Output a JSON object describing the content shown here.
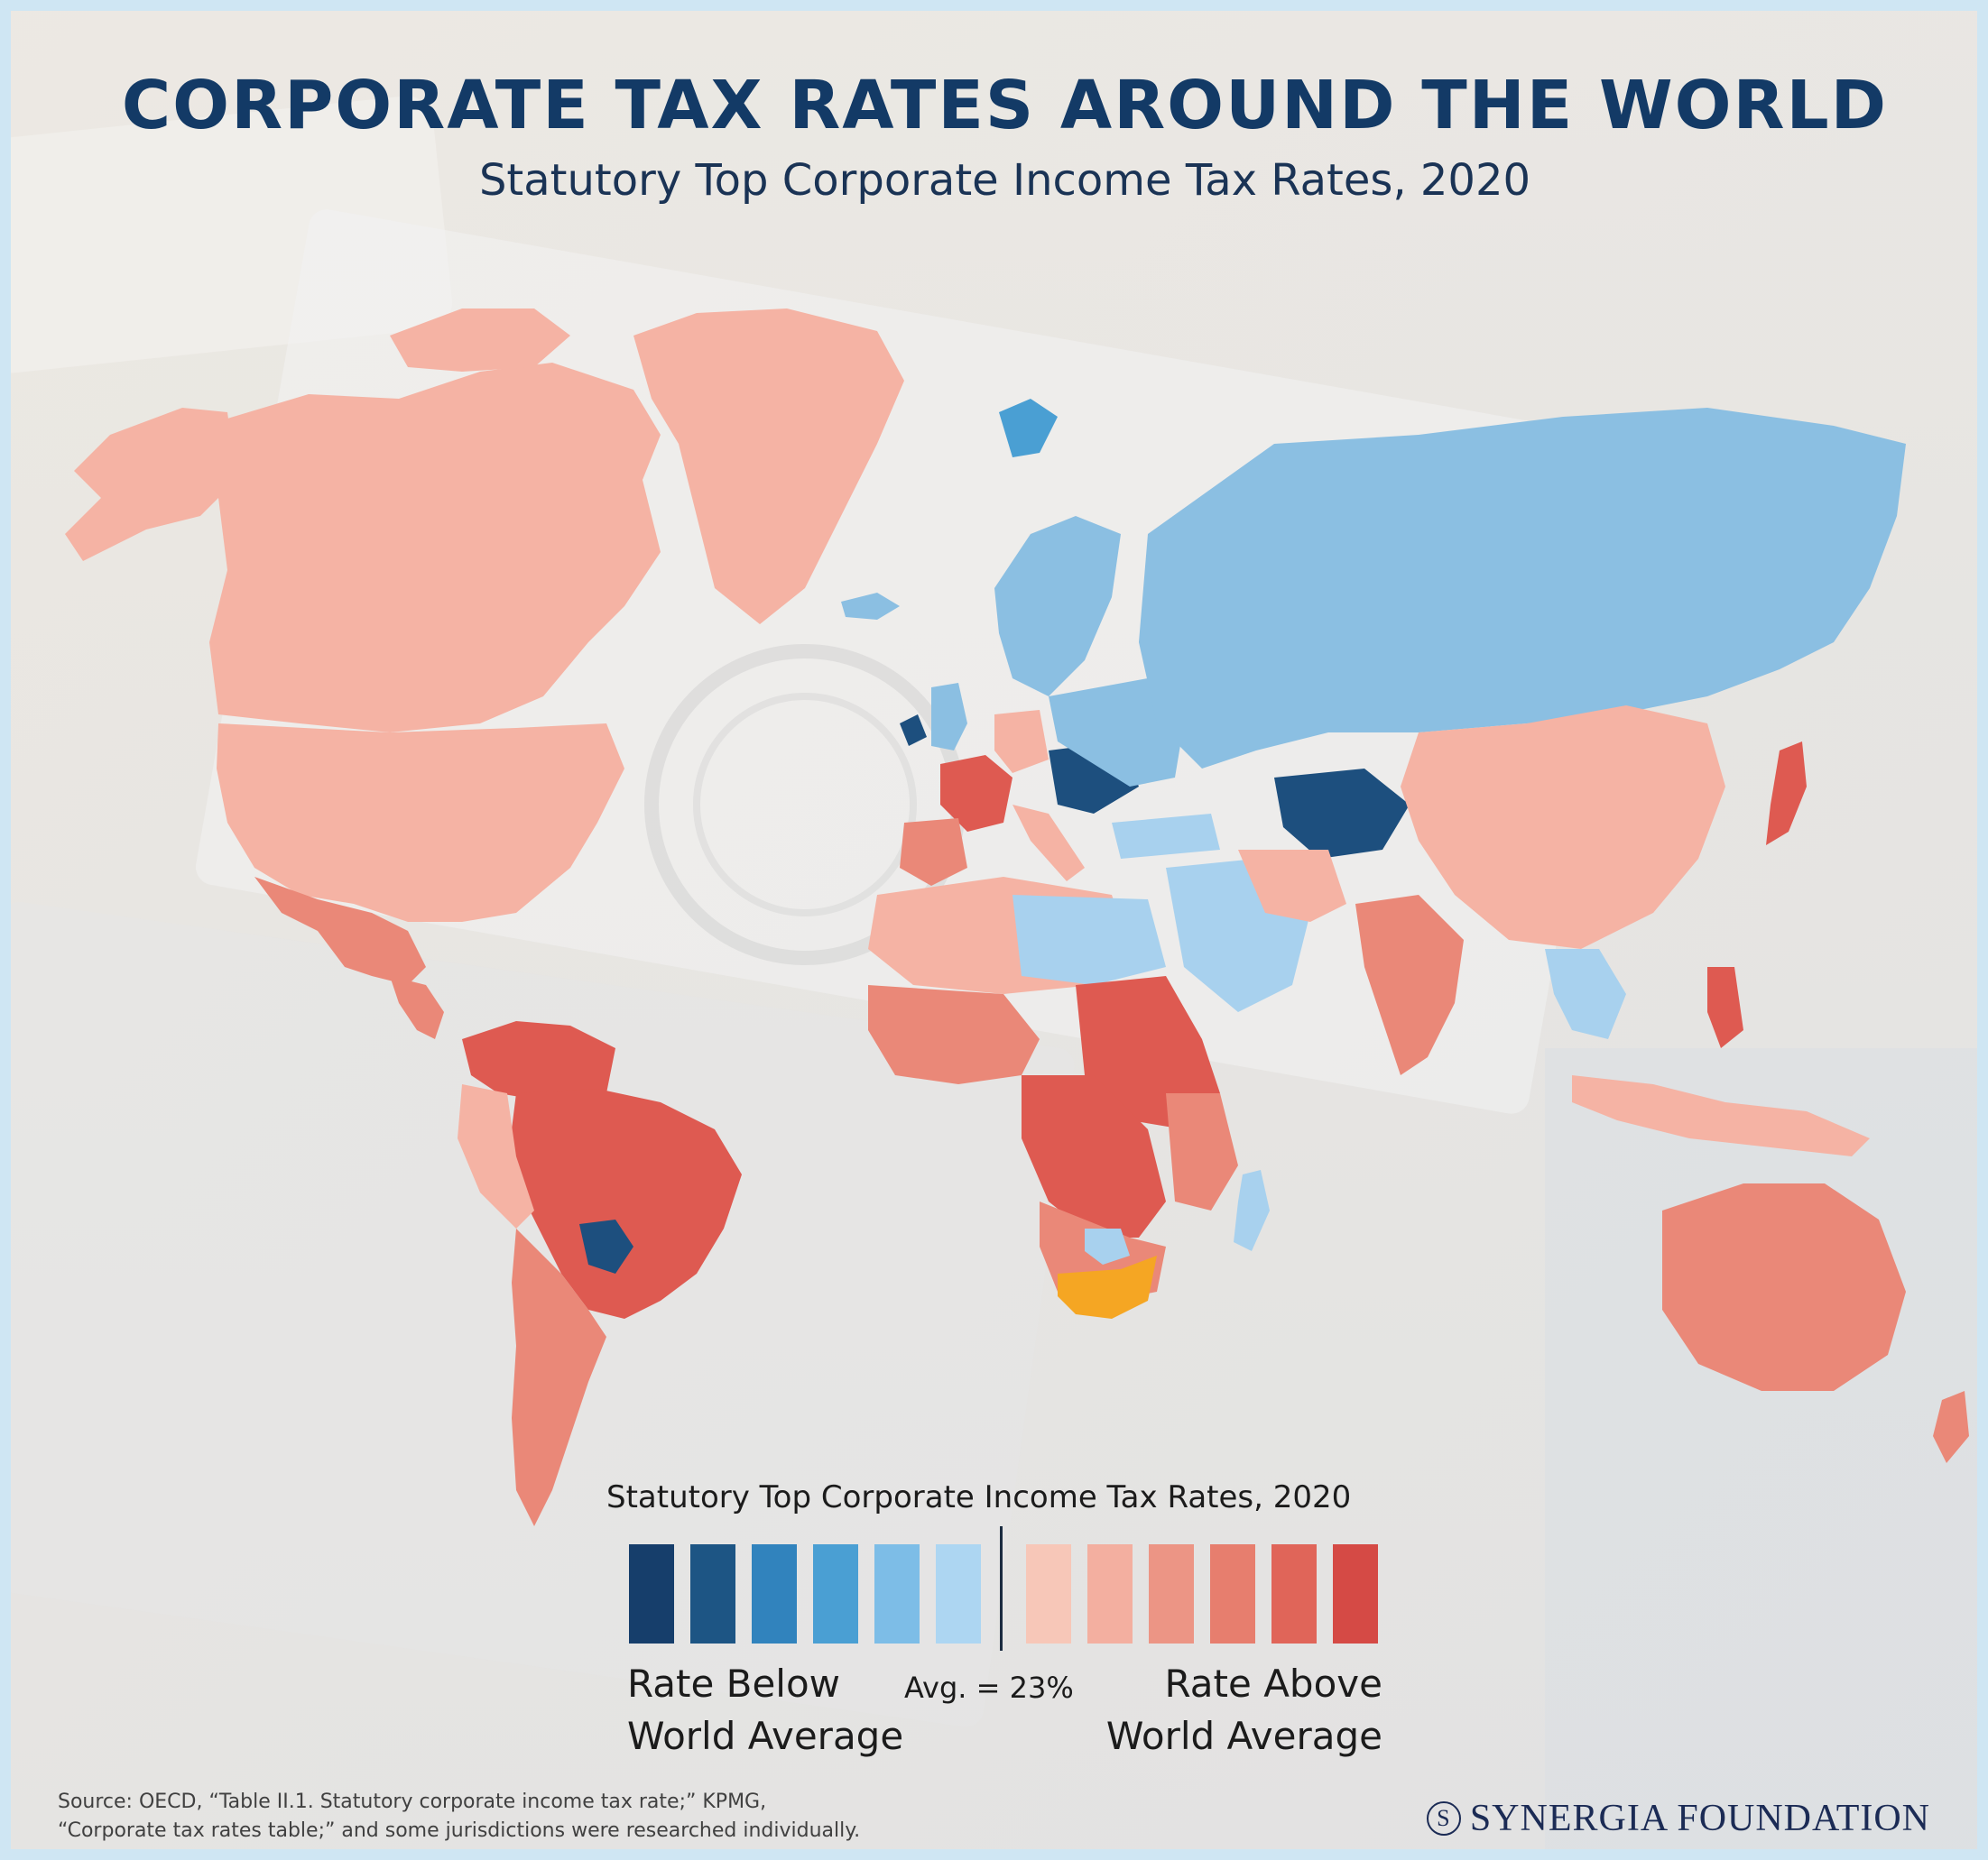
{
  "header": {
    "title": "CORPORATE TAX RATES AROUND THE WORLD",
    "subtitle": "Statutory Top Corporate Income Tax Rates, 2020"
  },
  "legend": {
    "title": "Statutory Top Corporate Income Tax Rates, 2020",
    "below_line1": "Rate Below",
    "below_line2": "World Average",
    "above_line1": "Rate Above",
    "above_line2": "World Average",
    "average_label": "Avg. = 23%",
    "below_colors": [
      "#163e6b",
      "#1d5584",
      "#3183bd",
      "#4a9fd3",
      "#7dbde7",
      "#add6f2"
    ],
    "above_colors": [
      "#f7c7b8",
      "#f3afa0",
      "#ec9585",
      "#e77e6e",
      "#e06559",
      "#d54a45"
    ]
  },
  "map_colors": {
    "above_light": "#f5b3a4",
    "above_mid": "#ea8878",
    "above_high": "#de5a51",
    "above_top": "#d54a45",
    "below_light": "#a8d1ee",
    "below_mid": "#8bbfe2",
    "below_dark": "#4c8fc4",
    "below_darkest": "#1d4f7e",
    "highlight_orange": "#f5a623",
    "no_data": "#d9d9d9"
  },
  "footer": {
    "source_line1": "Source: OECD, “Table II.1. Statutory corporate income tax rate;” KPMG,",
    "source_line2": "“Corporate tax rates table;” and some jurisdictions were researched individually.",
    "brand": "SYNERGIA FOUNDATION",
    "brand_mark": "S"
  }
}
